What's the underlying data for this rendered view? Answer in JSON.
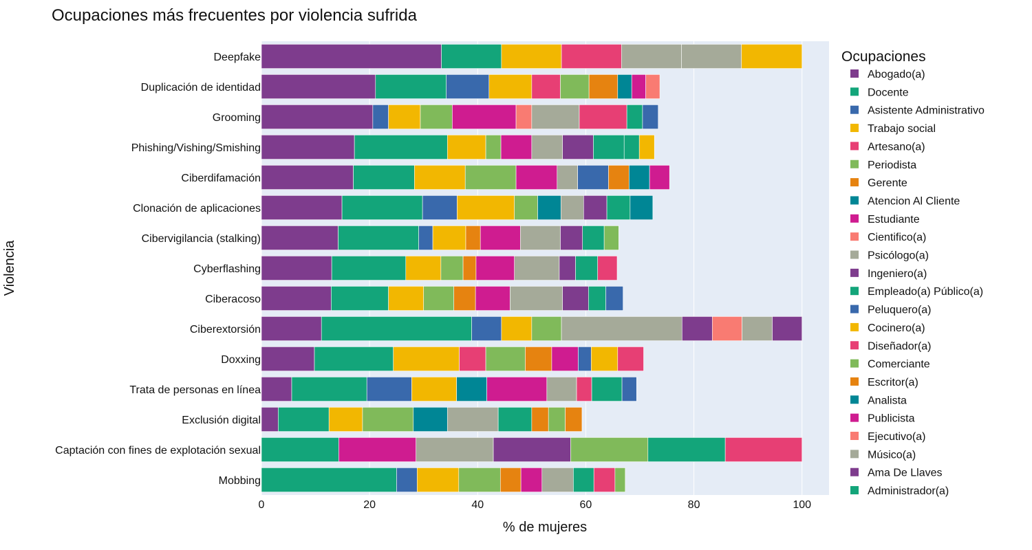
{
  "chart_data": {
    "type": "bar",
    "orientation": "horizontal",
    "stacked": true,
    "title": "Ocupaciones más frecuentes por violencia sufrida",
    "xlabel": "% de mujeres",
    "ylabel": "Violencia",
    "xlim": [
      0,
      105
    ],
    "xticks": [
      0,
      20,
      40,
      60,
      80,
      100
    ],
    "grid": true,
    "legend_position": "right",
    "legend_title": "Ocupaciones",
    "occupations": [
      {
        "name": "Abogado(a)",
        "color": "#7E3C8D"
      },
      {
        "name": "Docente",
        "color": "#13A57A"
      },
      {
        "name": "Asistente Administrativo",
        "color": "#3969AC"
      },
      {
        "name": "Trabajo social",
        "color": "#F2B701"
      },
      {
        "name": "Artesano(a)",
        "color": "#E73F74"
      },
      {
        "name": "Periodista",
        "color": "#80BA5A"
      },
      {
        "name": "Gerente",
        "color": "#E68310"
      },
      {
        "name": "Atencion Al Cliente",
        "color": "#008695"
      },
      {
        "name": "Estudiante",
        "color": "#CF1C90"
      },
      {
        "name": "Cientifico(a)",
        "color": "#F97B72"
      },
      {
        "name": "Psicólogo(a)",
        "color": "#A5AA99"
      },
      {
        "name": "Ingeniero(a)",
        "color": "#7E3C8D"
      },
      {
        "name": "Empleado(a) Público(a)",
        "color": "#13A57A"
      },
      {
        "name": "Peluquero(a)",
        "color": "#3969AC"
      },
      {
        "name": "Cocinero(a)",
        "color": "#F2B701"
      },
      {
        "name": "Diseñador(a)",
        "color": "#E73F74"
      },
      {
        "name": "Comerciante",
        "color": "#80BA5A"
      },
      {
        "name": "Escritor(a)",
        "color": "#E68310"
      },
      {
        "name": "Analista",
        "color": "#008695"
      },
      {
        "name": "Publicista",
        "color": "#CF1C90"
      },
      {
        "name": "Ejecutivo(a)",
        "color": "#F97B72"
      },
      {
        "name": "Músico(a)",
        "color": "#A5AA99"
      },
      {
        "name": "Ama De Llaves",
        "color": "#7E3C8D"
      },
      {
        "name": "Administrador(a)",
        "color": "#13A57A"
      }
    ],
    "categories": [
      "Deepfake",
      "Duplicación de identidad",
      "Grooming",
      "Phishing/Vishing/Smishing",
      "Ciberdifamación",
      "Clonación de aplicaciones",
      "Cibervigilancia (stalking)",
      "Cyberflashing",
      "Ciberacoso",
      "Ciberextorsión",
      "Doxxing",
      "Trata de personas en línea",
      "Exclusión digital",
      "Captación con fines de explotación sexual",
      "Mobbing"
    ],
    "bars": [
      {
        "label": "Deepfake",
        "segments": [
          {
            "occupation": "Abogado(a)",
            "value": 33.3
          },
          {
            "occupation": "Docente",
            "value": 11.1
          },
          {
            "occupation": "Trabajo social",
            "value": 11.1
          },
          {
            "occupation": "Artesano(a)",
            "value": 11.1
          },
          {
            "occupation": "Psicólogo(a)",
            "value": 11.1
          },
          {
            "occupation": "Músico(a)",
            "value": 11.1
          },
          {
            "occupation": "Cocinero(a)",
            "value": 11.2
          }
        ]
      },
      {
        "label": "Duplicación de identidad",
        "segments": [
          {
            "occupation": "Abogado(a)",
            "value": 21.1
          },
          {
            "occupation": "Docente",
            "value": 13.1
          },
          {
            "occupation": "Asistente Administrativo",
            "value": 7.9
          },
          {
            "occupation": "Trabajo social",
            "value": 7.9
          },
          {
            "occupation": "Artesano(a)",
            "value": 5.3
          },
          {
            "occupation": "Periodista",
            "value": 5.3
          },
          {
            "occupation": "Gerente",
            "value": 5.3
          },
          {
            "occupation": "Atencion Al Cliente",
            "value": 2.6
          },
          {
            "occupation": "Estudiante",
            "value": 2.6
          },
          {
            "occupation": "Cientifico(a)",
            "value": 2.6
          }
        ]
      },
      {
        "label": "Grooming",
        "segments": [
          {
            "occupation": "Abogado(a)",
            "value": 20.6
          },
          {
            "occupation": "Asistente Administrativo",
            "value": 2.9
          },
          {
            "occupation": "Trabajo social",
            "value": 5.9
          },
          {
            "occupation": "Periodista",
            "value": 5.9
          },
          {
            "occupation": "Estudiante",
            "value": 11.8
          },
          {
            "occupation": "Cientifico(a)",
            "value": 2.9
          },
          {
            "occupation": "Psicólogo(a)",
            "value": 8.8
          },
          {
            "occupation": "Diseñador(a)",
            "value": 8.8
          },
          {
            "occupation": "Empleado(a) Público(a)",
            "value": 2.9
          },
          {
            "occupation": "Peluquero(a)",
            "value": 2.9
          }
        ]
      },
      {
        "label": "Phishing/Vishing/Smishing",
        "segments": [
          {
            "occupation": "Abogado(a)",
            "value": 17.2
          },
          {
            "occupation": "Docente",
            "value": 17.2
          },
          {
            "occupation": "Trabajo social",
            "value": 7.1
          },
          {
            "occupation": "Periodista",
            "value": 2.8
          },
          {
            "occupation": "Estudiante",
            "value": 5.7
          },
          {
            "occupation": "Psicólogo(a)",
            "value": 5.7
          },
          {
            "occupation": "Ingeniero(a)",
            "value": 5.7
          },
          {
            "occupation": "Empleado(a) Público(a)",
            "value": 5.7
          },
          {
            "occupation": "Administrador(a)",
            "value": 2.8
          },
          {
            "occupation": "Cocinero(a)",
            "value": 2.8
          }
        ]
      },
      {
        "label": "Ciberdifamación",
        "segments": [
          {
            "occupation": "Abogado(a)",
            "value": 17.0
          },
          {
            "occupation": "Docente",
            "value": 11.3
          },
          {
            "occupation": "Trabajo social",
            "value": 9.4
          },
          {
            "occupation": "Periodista",
            "value": 9.4
          },
          {
            "occupation": "Estudiante",
            "value": 7.6
          },
          {
            "occupation": "Psicólogo(a)",
            "value": 3.8
          },
          {
            "occupation": "Asistente Administrativo",
            "value": 5.7
          },
          {
            "occupation": "Gerente",
            "value": 3.8
          },
          {
            "occupation": "Atencion Al Cliente",
            "value": 3.8
          },
          {
            "occupation": "Publicista",
            "value": 3.7
          }
        ]
      },
      {
        "label": "Clonación de aplicaciones",
        "segments": [
          {
            "occupation": "Abogado(a)",
            "value": 14.9
          },
          {
            "occupation": "Docente",
            "value": 14.9
          },
          {
            "occupation": "Asistente Administrativo",
            "value": 6.4
          },
          {
            "occupation": "Trabajo social",
            "value": 10.6
          },
          {
            "occupation": "Periodista",
            "value": 4.3
          },
          {
            "occupation": "Atencion Al Cliente",
            "value": 4.3
          },
          {
            "occupation": "Psicólogo(a)",
            "value": 4.2
          },
          {
            "occupation": "Ingeniero(a)",
            "value": 4.3
          },
          {
            "occupation": "Empleado(a) Público(a)",
            "value": 4.3
          },
          {
            "occupation": "Analista",
            "value": 4.2
          }
        ]
      },
      {
        "label": "Cibervigilancia (stalking)",
        "segments": [
          {
            "occupation": "Abogado(a)",
            "value": 14.2
          },
          {
            "occupation": "Docente",
            "value": 14.9
          },
          {
            "occupation": "Asistente Administrativo",
            "value": 2.6
          },
          {
            "occupation": "Trabajo social",
            "value": 6.1
          },
          {
            "occupation": "Gerente",
            "value": 2.7
          },
          {
            "occupation": "Estudiante",
            "value": 7.4
          },
          {
            "occupation": "Psicólogo(a)",
            "value": 7.4
          },
          {
            "occupation": "Ingeniero(a)",
            "value": 4.1
          },
          {
            "occupation": "Empleado(a) Público(a)",
            "value": 4.0
          },
          {
            "occupation": "Periodista",
            "value": 2.7
          }
        ]
      },
      {
        "label": "Cyberflashing",
        "segments": [
          {
            "occupation": "Abogado(a)",
            "value": 13.0
          },
          {
            "occupation": "Docente",
            "value": 13.7
          },
          {
            "occupation": "Trabajo social",
            "value": 6.5
          },
          {
            "occupation": "Periodista",
            "value": 4.1
          },
          {
            "occupation": "Gerente",
            "value": 2.4
          },
          {
            "occupation": "Estudiante",
            "value": 7.1
          },
          {
            "occupation": "Psicólogo(a)",
            "value": 8.3
          },
          {
            "occupation": "Ingeniero(a)",
            "value": 3.0
          },
          {
            "occupation": "Empleado(a) Público(a)",
            "value": 4.1
          },
          {
            "occupation": "Diseñador(a)",
            "value": 3.6
          }
        ]
      },
      {
        "label": "Ciberacoso",
        "segments": [
          {
            "occupation": "Abogado(a)",
            "value": 12.9
          },
          {
            "occupation": "Docente",
            "value": 10.6
          },
          {
            "occupation": "Trabajo social",
            "value": 6.5
          },
          {
            "occupation": "Periodista",
            "value": 5.6
          },
          {
            "occupation": "Gerente",
            "value": 4.0
          },
          {
            "occupation": "Estudiante",
            "value": 6.4
          },
          {
            "occupation": "Psicólogo(a)",
            "value": 9.7
          },
          {
            "occupation": "Ingeniero(a)",
            "value": 4.8
          },
          {
            "occupation": "Empleado(a) Público(a)",
            "value": 3.2
          },
          {
            "occupation": "Peluquero(a)",
            "value": 3.2
          }
        ]
      },
      {
        "label": "Ciberextorsión",
        "segments": [
          {
            "occupation": "Abogado(a)",
            "value": 11.1
          },
          {
            "occupation": "Docente",
            "value": 27.8
          },
          {
            "occupation": "Asistente Administrativo",
            "value": 5.5
          },
          {
            "occupation": "Trabajo social",
            "value": 5.6
          },
          {
            "occupation": "Periodista",
            "value": 5.5
          },
          {
            "occupation": "Psicólogo(a)",
            "value": 22.3
          },
          {
            "occupation": "Ingeniero(a)",
            "value": 5.6
          },
          {
            "occupation": "Cientifico(a)",
            "value": 5.5
          },
          {
            "occupation": "Músico(a)",
            "value": 5.6
          },
          {
            "occupation": "Ama De Llaves",
            "value": 5.5
          }
        ]
      },
      {
        "label": "Doxxing",
        "segments": [
          {
            "occupation": "Abogado(a)",
            "value": 9.8
          },
          {
            "occupation": "Docente",
            "value": 14.6
          },
          {
            "occupation": "Trabajo social",
            "value": 12.2
          },
          {
            "occupation": "Artesano(a)",
            "value": 4.9
          },
          {
            "occupation": "Periodista",
            "value": 7.3
          },
          {
            "occupation": "Gerente",
            "value": 4.9
          },
          {
            "occupation": "Estudiante",
            "value": 4.9
          },
          {
            "occupation": "Peluquero(a)",
            "value": 2.4
          },
          {
            "occupation": "Cocinero(a)",
            "value": 4.9
          },
          {
            "occupation": "Diseñador(a)",
            "value": 4.8
          }
        ]
      },
      {
        "label": "Trata de personas en línea",
        "segments": [
          {
            "occupation": "Abogado(a)",
            "value": 5.6
          },
          {
            "occupation": "Docente",
            "value": 13.9
          },
          {
            "occupation": "Asistente Administrativo",
            "value": 8.3
          },
          {
            "occupation": "Trabajo social",
            "value": 8.3
          },
          {
            "occupation": "Atencion Al Cliente",
            "value": 5.6
          },
          {
            "occupation": "Estudiante",
            "value": 11.1
          },
          {
            "occupation": "Psicólogo(a)",
            "value": 5.5
          },
          {
            "occupation": "Diseñador(a)",
            "value": 2.8
          },
          {
            "occupation": "Empleado(a) Público(a)",
            "value": 5.6
          },
          {
            "occupation": "Peluquero(a)",
            "value": 2.7
          }
        ]
      },
      {
        "label": "Exclusión digital",
        "segments": [
          {
            "occupation": "Abogado(a)",
            "value": 3.1
          },
          {
            "occupation": "Docente",
            "value": 9.4
          },
          {
            "occupation": "Trabajo social",
            "value": 6.2
          },
          {
            "occupation": "Periodista",
            "value": 9.4
          },
          {
            "occupation": "Atencion Al Cliente",
            "value": 6.3
          },
          {
            "occupation": "Psicólogo(a)",
            "value": 9.4
          },
          {
            "occupation": "Empleado(a) Público(a)",
            "value": 6.2
          },
          {
            "occupation": "Gerente",
            "value": 3.1
          },
          {
            "occupation": "Comerciante",
            "value": 3.1
          },
          {
            "occupation": "Escritor(a)",
            "value": 3.1
          }
        ]
      },
      {
        "label": "Captación con fines de explotación sexual",
        "segments": [
          {
            "occupation": "Docente",
            "value": 14.3
          },
          {
            "occupation": "Estudiante",
            "value": 14.3
          },
          {
            "occupation": "Psicólogo(a)",
            "value": 14.3
          },
          {
            "occupation": "Ingeniero(a)",
            "value": 14.3
          },
          {
            "occupation": "Periodista",
            "value": 14.3
          },
          {
            "occupation": "Empleado(a) Público(a)",
            "value": 14.3
          },
          {
            "occupation": "Artesano(a)",
            "value": 14.2
          }
        ]
      },
      {
        "label": "Mobbing",
        "segments": [
          {
            "occupation": "Docente",
            "value": 25.0
          },
          {
            "occupation": "Asistente Administrativo",
            "value": 3.8
          },
          {
            "occupation": "Trabajo social",
            "value": 7.7
          },
          {
            "occupation": "Periodista",
            "value": 7.7
          },
          {
            "occupation": "Gerente",
            "value": 3.8
          },
          {
            "occupation": "Estudiante",
            "value": 3.9
          },
          {
            "occupation": "Psicólogo(a)",
            "value": 5.8
          },
          {
            "occupation": "Empleado(a) Público(a)",
            "value": 3.8
          },
          {
            "occupation": "Artesano(a)",
            "value": 3.9
          },
          {
            "occupation": "Periodista",
            "value": 1.9
          }
        ]
      }
    ]
  }
}
